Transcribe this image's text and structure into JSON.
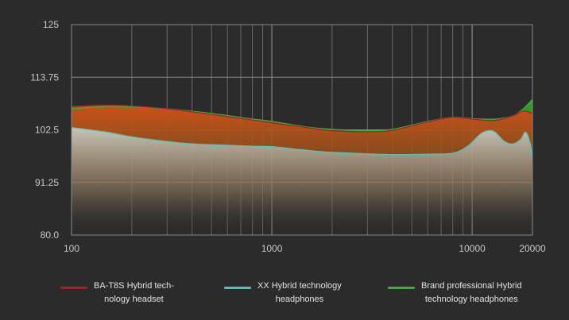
{
  "chart_data": {
    "type": "area",
    "x_scale": "log",
    "xlim": [
      100,
      20000
    ],
    "ylim": [
      80.0,
      125
    ],
    "x_ticks": [
      "100",
      "1000",
      "10000",
      "20000"
    ],
    "x_tick_values": [
      100,
      1000,
      10000,
      20000
    ],
    "y_ticks": [
      "125",
      "113.75",
      "102.5",
      "91.25",
      "80.0"
    ],
    "y_tick_values": [
      125,
      113.75,
      102.5,
      91.25,
      80.0
    ],
    "grid": true,
    "legend_position": "bottom",
    "series": [
      {
        "name": "BA-T8S Hybrid tech-\nnology headset",
        "color": "#c0161b",
        "fill": "#e05a1e",
        "points": [
          [
            100,
            107.5
          ],
          [
            150,
            107.8
          ],
          [
            200,
            107.6
          ],
          [
            300,
            107.0
          ],
          [
            500,
            105.8
          ],
          [
            800,
            104.6
          ],
          [
            1000,
            104.0
          ],
          [
            1500,
            103.0
          ],
          [
            2000,
            102.3
          ],
          [
            3000,
            102.1
          ],
          [
            4000,
            102.4
          ],
          [
            6000,
            104.2
          ],
          [
            8000,
            105.2
          ],
          [
            10000,
            104.8
          ],
          [
            13000,
            104.5
          ],
          [
            16000,
            105.5
          ],
          [
            18000,
            106.5
          ],
          [
            20000,
            106.0
          ]
        ]
      },
      {
        "name": "XX Hybrid technology\nheadphones",
        "color": "#4ac5c2",
        "fill": "#b7c7c2",
        "points": [
          [
            100,
            103.0
          ],
          [
            150,
            102.0
          ],
          [
            200,
            101.0
          ],
          [
            300,
            100.0
          ],
          [
            400,
            99.5
          ],
          [
            600,
            99.2
          ],
          [
            800,
            99.0
          ],
          [
            1000,
            98.9
          ],
          [
            1300,
            98.4
          ],
          [
            1800,
            97.8
          ],
          [
            2500,
            97.5
          ],
          [
            4000,
            97.2
          ],
          [
            6000,
            97.3
          ],
          [
            8000,
            97.5
          ],
          [
            9500,
            99.0
          ],
          [
            11000,
            101.6
          ],
          [
            12000,
            102.3
          ],
          [
            13000,
            102.0
          ],
          [
            14500,
            100.0
          ],
          [
            16000,
            99.5
          ],
          [
            17500,
            100.5
          ],
          [
            18500,
            102.0
          ],
          [
            19500,
            99.5
          ],
          [
            20000,
            96.0
          ]
        ]
      },
      {
        "name": "Brand professional Hybrid\ntechnology headphones",
        "color": "#35b52d",
        "fill": "#3fa830",
        "points": [
          [
            100,
            107.0
          ],
          [
            150,
            107.5
          ],
          [
            200,
            107.4
          ],
          [
            300,
            107.0
          ],
          [
            500,
            106.0
          ],
          [
            800,
            104.8
          ],
          [
            1000,
            104.3
          ],
          [
            1500,
            103.1
          ],
          [
            2000,
            102.6
          ],
          [
            3000,
            102.3
          ],
          [
            4000,
            102.6
          ],
          [
            6000,
            104.3
          ],
          [
            8000,
            105.2
          ],
          [
            10000,
            104.9
          ],
          [
            13000,
            104.8
          ],
          [
            16000,
            105.5
          ],
          [
            18000,
            107.0
          ],
          [
            20000,
            109.0
          ]
        ]
      }
    ]
  },
  "legend": [
    {
      "label": "BA-T8S Hybrid tech-\nnology headset",
      "color": "#c0161b"
    },
    {
      "label": "XX Hybrid technology\nheadphones",
      "color": "#4ac5c2"
    },
    {
      "label": "Brand professional Hybrid\ntechnology headphones",
      "color": "#35b52d"
    }
  ]
}
